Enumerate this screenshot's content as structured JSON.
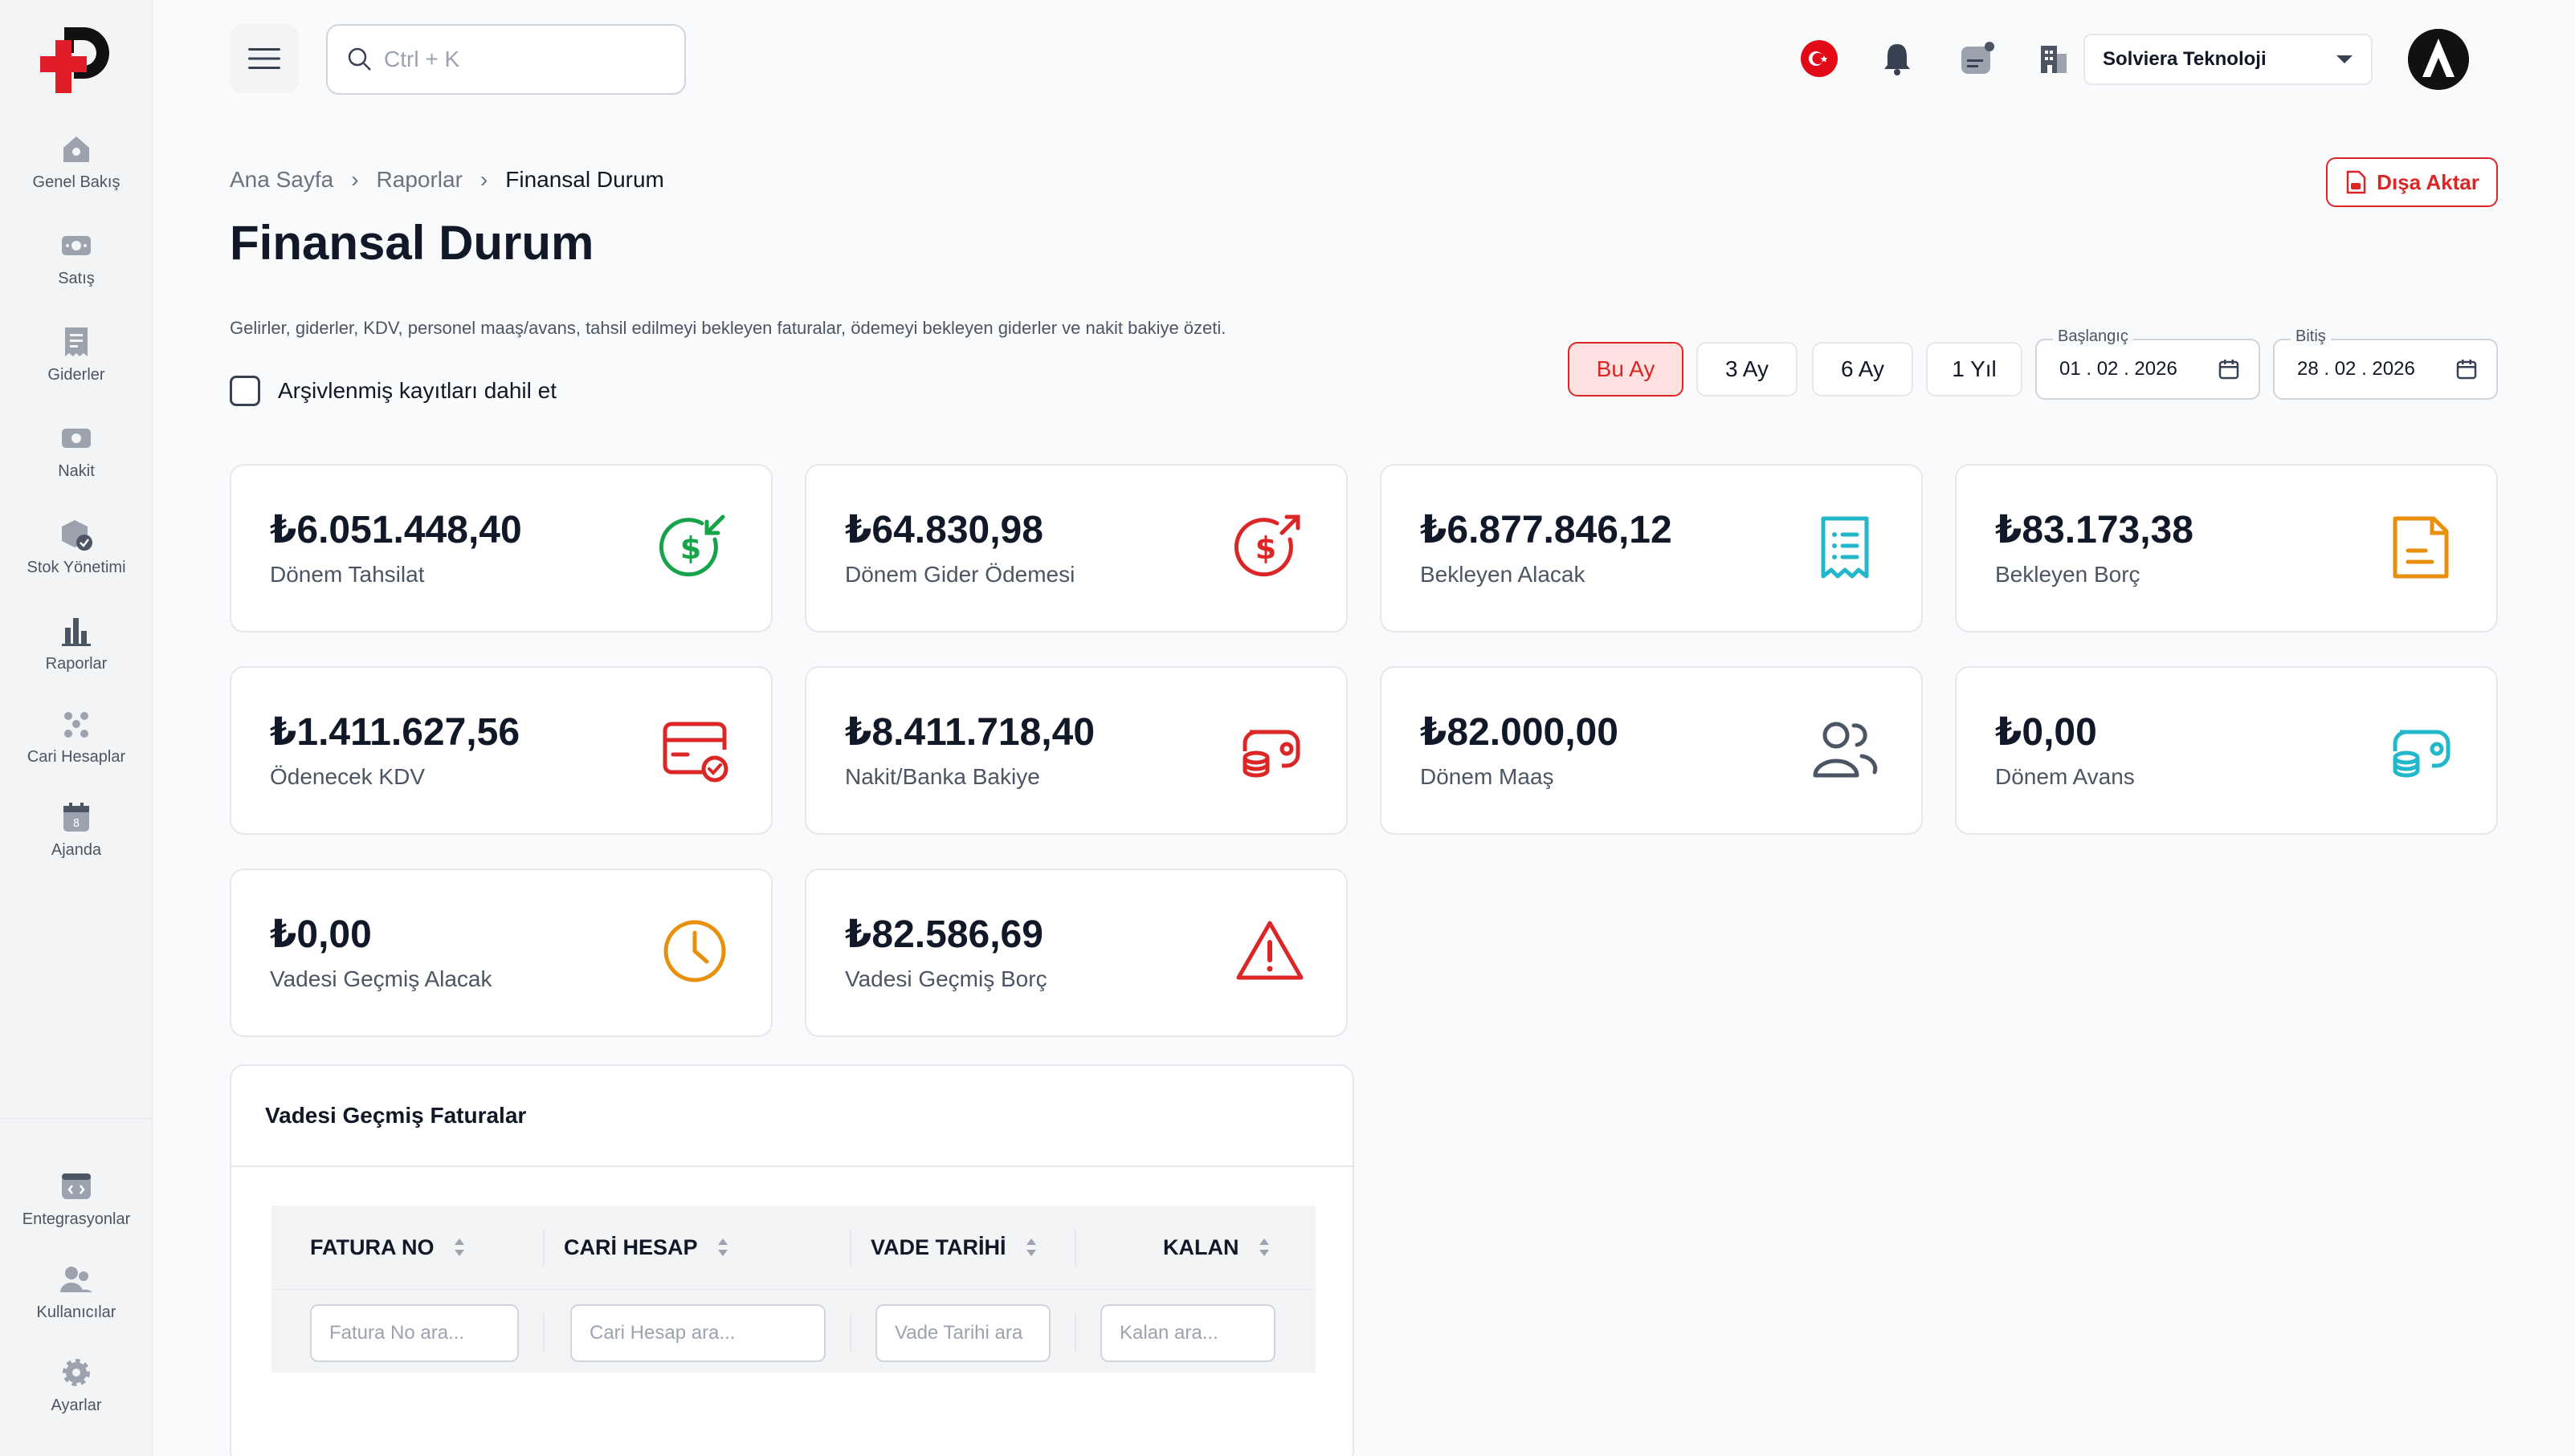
{
  "sidebar": {
    "items": [
      {
        "label": "Genel Bakış",
        "icon": "dashboard-icon"
      },
      {
        "label": "Satış",
        "icon": "sales-icon"
      },
      {
        "label": "Giderler",
        "icon": "expenses-icon"
      },
      {
        "label": "Nakit",
        "icon": "cash-icon"
      },
      {
        "label": "Stok Yönetimi",
        "icon": "stock-icon"
      },
      {
        "label": "Raporlar",
        "icon": "reports-icon"
      },
      {
        "label": "Cari Hesaplar",
        "icon": "accounts-icon"
      },
      {
        "label": "Ajanda",
        "icon": "calendar-icon"
      }
    ],
    "bottom_items": [
      {
        "label": "Entegrasyonlar",
        "icon": "integrations-icon"
      },
      {
        "label": "Kullanıcılar",
        "icon": "users-icon"
      },
      {
        "label": "Ayarlar",
        "icon": "settings-icon"
      }
    ]
  },
  "topbar": {
    "search_placeholder": "Ctrl + K",
    "company": "Solviera Teknoloji"
  },
  "header": {
    "breadcrumb": [
      "Ana Sayfa",
      "Raporlar",
      "Finansal Durum"
    ],
    "title": "Finansal Durum",
    "export_label": "Dışa Aktar",
    "description": "Gelirler, giderler, KDV, personel maaş/avans, tahsil edilmeyi bekleyen faturalar, ödemeyi bekleyen giderler ve nakit bakiye özeti.",
    "archive_label": "Arşivlenmiş kayıtları dahil et"
  },
  "filters": {
    "periods": [
      "Bu Ay",
      "3 Ay",
      "6 Ay",
      "1 Yıl"
    ],
    "active_period": "Bu Ay",
    "start_label": "Başlangıç",
    "start_value": "01 . 02 . 2026",
    "end_label": "Bitiş",
    "end_value": "28 . 02 . 2026"
  },
  "cards": [
    {
      "value": "₺6.051.448,40",
      "label": "Dönem Tahsilat",
      "color": "#16a34a"
    },
    {
      "value": "₺64.830,98",
      "label": "Dönem Gider Ödemesi",
      "color": "#dc2626"
    },
    {
      "value": "₺6.877.846,12",
      "label": "Bekleyen Alacak",
      "color": "#22b8c9"
    },
    {
      "value": "₺83.173,38",
      "label": "Bekleyen Borç",
      "color": "#e8900c"
    },
    {
      "value": "₺1.411.627,56",
      "label": "Ödenecek KDV",
      "color": "#dc2626"
    },
    {
      "value": "₺8.411.718,40",
      "label": "Nakit/Banka Bakiye",
      "color": "#dc2626"
    },
    {
      "value": "₺82.000,00",
      "label": "Dönem Maaş",
      "color": "#4b5563"
    },
    {
      "value": "₺0,00",
      "label": "Dönem Avans",
      "color": "#22b8c9"
    },
    {
      "value": "₺0,00",
      "label": "Vadesi Geçmiş Alacak",
      "color": "#e8900c"
    },
    {
      "value": "₺82.586,69",
      "label": "Vadesi Geçmiş Borç",
      "color": "#dc2626"
    }
  ],
  "overdue": {
    "title": "Vadesi Geçmiş Faturalar",
    "columns": [
      "FATURA NO",
      "CARİ HESAP",
      "VADE TARİHİ",
      "KALAN"
    ],
    "filter_placeholders": [
      "Fatura No ara...",
      "Cari Hesap ara...",
      "Vade Tarihi ara",
      "Kalan ara..."
    ]
  }
}
